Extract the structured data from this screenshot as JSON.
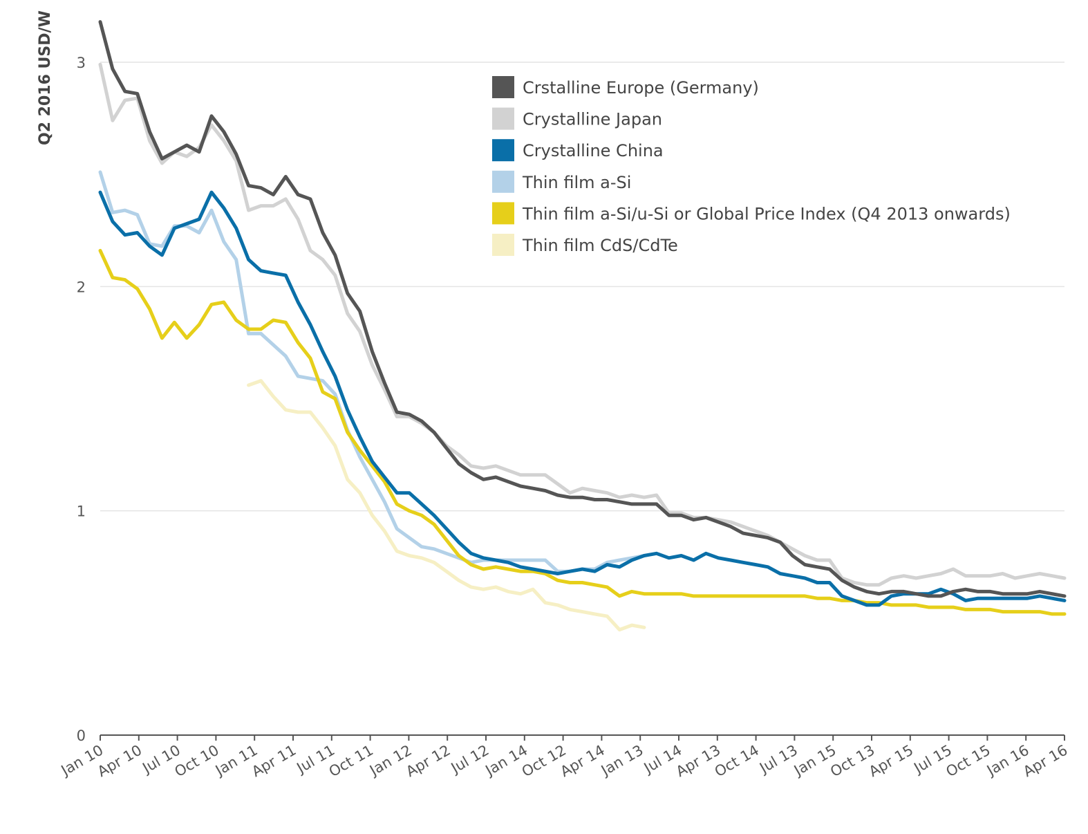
{
  "chart_data": {
    "type": "line",
    "title": "",
    "xlabel": "",
    "ylabel": "Q2 2016 USD/W",
    "ylim": [
      0,
      3.2
    ],
    "yticks": [
      0,
      1,
      2,
      3
    ],
    "grid": true,
    "legend_position": "top-right",
    "x_tick_labels": [
      "Jan 10",
      "Apr 10",
      "Jul 10",
      "Oct 10",
      "Jan 11",
      "Apr 11",
      "Jul 11",
      "Oct 11",
      "Jan 12",
      "Apr 12",
      "Jul 12",
      "Jan 14",
      "Oct 12",
      "Apr 14",
      "Jan 13",
      "Jul 14",
      "Apr 13",
      "Oct 14",
      "Jul 13",
      "Jan 15",
      "Oct 13",
      "Apr 15",
      "Jul 15",
      "Oct 15",
      "Jan 16",
      "Apr 16"
    ],
    "series": [
      {
        "name": "Crstalline Europe (Germany)",
        "color": "#555555",
        "x_start": 0,
        "values": [
          3.18,
          2.97,
          2.87,
          2.86,
          2.69,
          2.57,
          2.6,
          2.63,
          2.6,
          2.76,
          2.69,
          2.59,
          2.45,
          2.44,
          2.41,
          2.49,
          2.41,
          2.39,
          2.24,
          2.14,
          1.97,
          1.89,
          1.71,
          1.57,
          1.44,
          1.43,
          1.4,
          1.35,
          1.28,
          1.21,
          1.17,
          1.14,
          1.15,
          1.13,
          1.11,
          1.1,
          1.09,
          1.07,
          1.06,
          1.06,
          1.05,
          1.05,
          1.04,
          1.03,
          1.03,
          1.03,
          0.98,
          0.98,
          0.96,
          0.97,
          0.95,
          0.93,
          0.9,
          0.89,
          0.88,
          0.86,
          0.8,
          0.76,
          0.75,
          0.74,
          0.69,
          0.66,
          0.64,
          0.63,
          0.64,
          0.64,
          0.63,
          0.62,
          0.62,
          0.64,
          0.65,
          0.64,
          0.64,
          0.63,
          0.63,
          0.63,
          0.64,
          0.63,
          0.62
        ]
      },
      {
        "name": "Crystalline Japan",
        "color": "#d2d2d2",
        "x_start": 0,
        "values": [
          2.99,
          2.74,
          2.83,
          2.84,
          2.65,
          2.55,
          2.6,
          2.58,
          2.62,
          2.72,
          2.65,
          2.56,
          2.34,
          2.36,
          2.36,
          2.39,
          2.3,
          2.16,
          2.12,
          2.05,
          1.88,
          1.8,
          1.65,
          1.54,
          1.42,
          1.42,
          1.39,
          1.35,
          1.29,
          1.25,
          1.2,
          1.19,
          1.2,
          1.18,
          1.16,
          1.16,
          1.16,
          1.12,
          1.08,
          1.1,
          1.09,
          1.08,
          1.06,
          1.07,
          1.06,
          1.07,
          0.99,
          0.99,
          0.97,
          0.97,
          0.96,
          0.95,
          0.93,
          0.91,
          0.89,
          0.86,
          0.83,
          0.8,
          0.78,
          0.78,
          0.7,
          0.68,
          0.67,
          0.67,
          0.7,
          0.71,
          0.7,
          0.71,
          0.72,
          0.74,
          0.71,
          0.71,
          0.71,
          0.72,
          0.7,
          0.71,
          0.72,
          0.71,
          0.7
        ]
      },
      {
        "name": "Crystalline China",
        "color": "#0a6fa8",
        "x_start": 0,
        "values": [
          2.42,
          2.29,
          2.23,
          2.24,
          2.18,
          2.14,
          2.26,
          2.28,
          2.3,
          2.42,
          2.35,
          2.26,
          2.12,
          2.07,
          2.06,
          2.05,
          1.93,
          1.83,
          1.71,
          1.6,
          1.45,
          1.33,
          1.22,
          1.15,
          1.08,
          1.08,
          1.03,
          0.98,
          0.92,
          0.86,
          0.81,
          0.79,
          0.78,
          0.77,
          0.75,
          0.74,
          0.73,
          0.72,
          0.73,
          0.74,
          0.73,
          0.76,
          0.75,
          0.78,
          0.8,
          0.81,
          0.79,
          0.8,
          0.78,
          0.81,
          0.79,
          0.78,
          0.77,
          0.76,
          0.75,
          0.72,
          0.71,
          0.7,
          0.68,
          0.68,
          0.62,
          0.6,
          0.58,
          0.58,
          0.62,
          0.63,
          0.63,
          0.63,
          0.65,
          0.63,
          0.6,
          0.61,
          0.61,
          0.61,
          0.61,
          0.61,
          0.62,
          0.61,
          0.6
        ]
      },
      {
        "name": "Thin film a-Si",
        "color": "#b3d1e8",
        "x_start": 0,
        "values": [
          2.51,
          2.33,
          2.34,
          2.32,
          2.19,
          2.18,
          2.27,
          2.27,
          2.24,
          2.34,
          2.2,
          2.12,
          1.79,
          1.79,
          1.74,
          1.69,
          1.6,
          1.59,
          1.58,
          1.52,
          1.36,
          1.24,
          1.14,
          1.04,
          0.92,
          0.88,
          0.84,
          0.83,
          0.81,
          0.79,
          0.77,
          0.78,
          0.78,
          0.78,
          0.78,
          0.78,
          0.78,
          0.73,
          0.73,
          0.74,
          0.74,
          0.77,
          0.78,
          0.79,
          0.8
        ]
      },
      {
        "name": "Thin film a-Si/u-Si or Global Price Index (Q4 2013 onwards)",
        "color": "#e6cf1a",
        "x_start": 0,
        "values": [
          2.16,
          2.04,
          2.03,
          1.99,
          1.9,
          1.77,
          1.84,
          1.77,
          1.83,
          1.92,
          1.93,
          1.85,
          1.81,
          1.81,
          1.85,
          1.84,
          1.75,
          1.68,
          1.53,
          1.5,
          1.35,
          1.27,
          1.2,
          1.13,
          1.03,
          1.0,
          0.98,
          0.94,
          0.87,
          0.8,
          0.76,
          0.74,
          0.75,
          0.74,
          0.73,
          0.73,
          0.72,
          0.69,
          0.68,
          0.68,
          0.67,
          0.66,
          0.62,
          0.64,
          0.63,
          0.63,
          0.63,
          0.63,
          0.62,
          0.62,
          0.62,
          0.62,
          0.62,
          0.62,
          0.62,
          0.62,
          0.62,
          0.62,
          0.61,
          0.61,
          0.6,
          0.6,
          0.59,
          0.59,
          0.58,
          0.58,
          0.58,
          0.57,
          0.57,
          0.57,
          0.56,
          0.56,
          0.56,
          0.55,
          0.55,
          0.55,
          0.55,
          0.54,
          0.54
        ]
      },
      {
        "name": "Thin film CdS/CdTe",
        "color": "#f6efc4",
        "x_start": 12,
        "values": [
          1.56,
          1.58,
          1.51,
          1.45,
          1.44,
          1.44,
          1.37,
          1.29,
          1.14,
          1.08,
          0.98,
          0.91,
          0.82,
          0.8,
          0.79,
          0.77,
          0.73,
          0.69,
          0.66,
          0.65,
          0.66,
          0.64,
          0.63,
          0.65,
          0.59,
          0.58,
          0.56,
          0.55,
          0.54,
          0.53,
          0.47,
          0.49,
          0.48
        ]
      }
    ]
  }
}
